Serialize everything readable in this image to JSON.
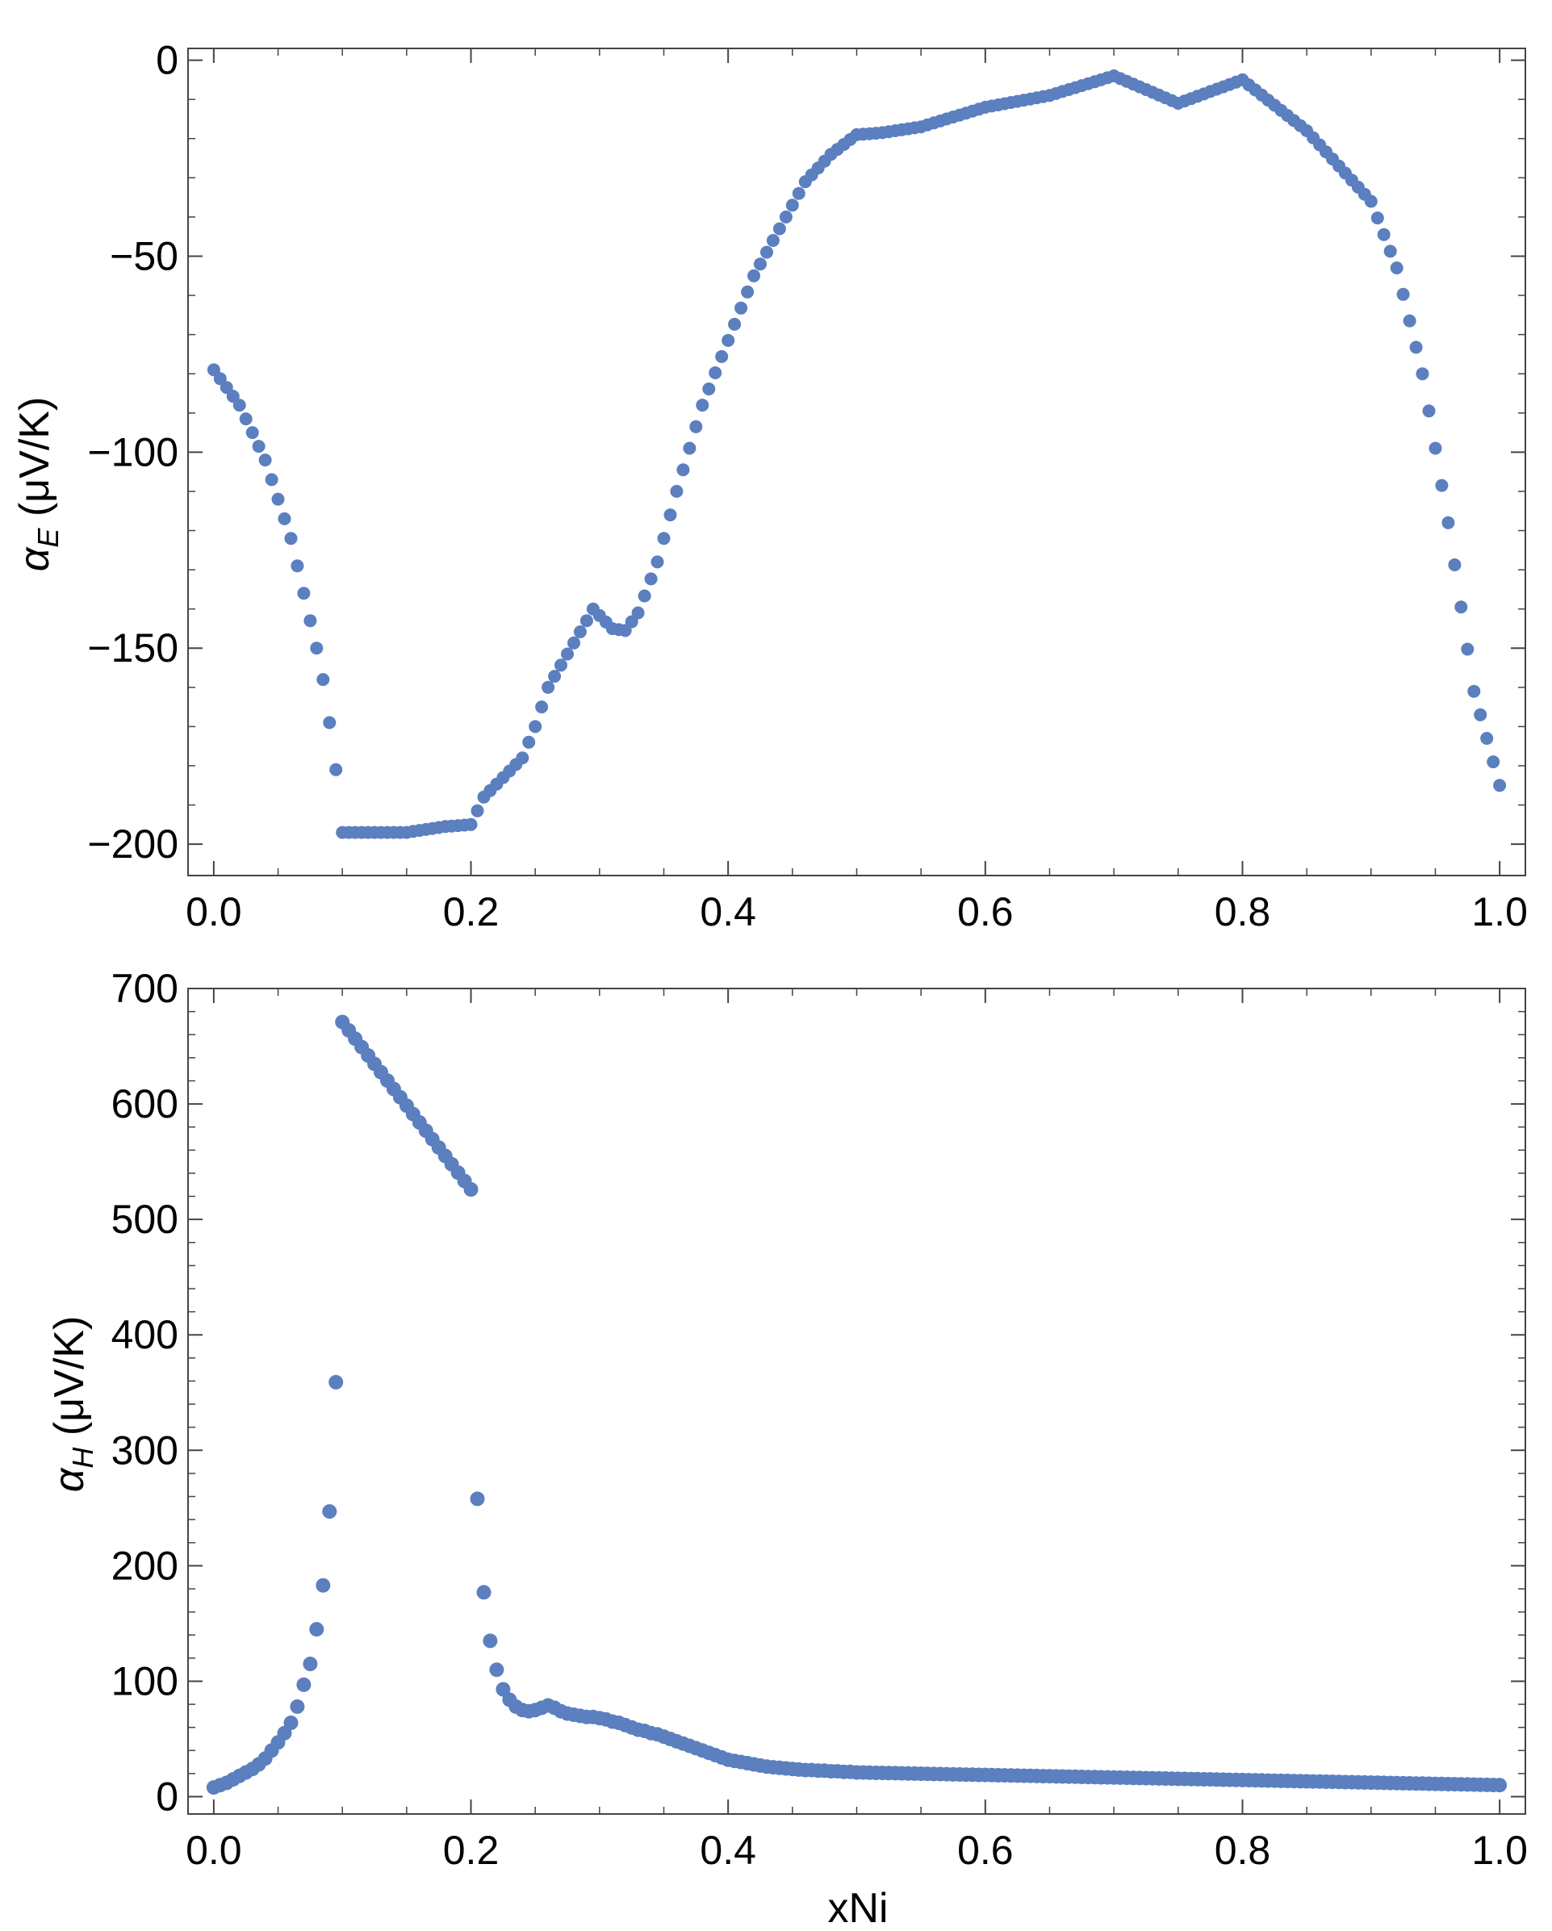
{
  "figure": {
    "marker_color": "#5b7fbf",
    "axis_color": "#444444"
  },
  "chart_data": [
    {
      "type": "scatter",
      "title": "",
      "ylabel": {
        "symbol": "α",
        "subscript": "E",
        "unit": " (μV/K)"
      },
      "xlabel": "",
      "xlim": [
        -0.02,
        1.02
      ],
      "ylim": [
        -208,
        3
      ],
      "xticks": [
        "0.0",
        "0.2",
        "0.4",
        "0.6",
        "0.8",
        "1.0"
      ],
      "yticks": [
        "0",
        "−50",
        "−100",
        "−150",
        "−200"
      ],
      "ytick_values": [
        0,
        -50,
        -100,
        -150,
        -200
      ],
      "xtick_values": [
        0,
        0.2,
        0.4,
        0.6,
        0.8,
        1.0
      ],
      "grid": false,
      "anchors": [
        [
          0.0,
          -79
        ],
        [
          0.02,
          -88
        ],
        [
          0.04,
          -102
        ],
        [
          0.06,
          -122
        ],
        [
          0.07,
          -136
        ],
        [
          0.08,
          -150
        ],
        [
          0.085,
          -158
        ],
        [
          0.09,
          -169
        ],
        [
          0.095,
          -181
        ],
        [
          0.1,
          -197
        ],
        [
          0.12,
          -197
        ],
        [
          0.15,
          -197
        ],
        [
          0.18,
          -195.5
        ],
        [
          0.2,
          -195
        ],
        [
          0.21,
          -188
        ],
        [
          0.24,
          -178
        ],
        [
          0.25,
          -170
        ],
        [
          0.26,
          -160
        ],
        [
          0.29,
          -143
        ],
        [
          0.295,
          -140
        ],
        [
          0.31,
          -145
        ],
        [
          0.32,
          -145.5
        ],
        [
          0.33,
          -141
        ],
        [
          0.345,
          -128
        ],
        [
          0.36,
          -110
        ],
        [
          0.38,
          -88
        ],
        [
          0.42,
          -55
        ],
        [
          0.46,
          -31
        ],
        [
          0.48,
          -24
        ],
        [
          0.5,
          -19
        ],
        [
          0.52,
          -18.5
        ],
        [
          0.55,
          -17
        ],
        [
          0.6,
          -12
        ],
        [
          0.65,
          -9
        ],
        [
          0.7,
          -4
        ],
        [
          0.75,
          -11
        ],
        [
          0.8,
          -5
        ],
        [
          0.85,
          -18
        ],
        [
          0.9,
          -36
        ],
        [
          0.92,
          -53
        ],
        [
          0.94,
          -80
        ],
        [
          0.96,
          -118
        ],
        [
          0.98,
          -161
        ],
        [
          1.0,
          -185
        ]
      ],
      "start": 0.0,
      "end": 1.0,
      "step": 0.005
    },
    {
      "type": "scatter",
      "title": "",
      "ylabel": {
        "symbol": "α",
        "subscript": "H",
        "unit": " (μV/K)"
      },
      "xlabel": "xNi",
      "xlim": [
        -0.02,
        1.02
      ],
      "ylim": [
        -15,
        700
      ],
      "xticks": [
        "0.0",
        "0.2",
        "0.4",
        "0.6",
        "0.8",
        "1.0"
      ],
      "yticks": [
        "0",
        "100",
        "200",
        "300",
        "400",
        "500",
        "600",
        "700"
      ],
      "ytick_values": [
        0,
        100,
        200,
        300,
        400,
        500,
        600,
        700
      ],
      "xtick_values": [
        0,
        0.2,
        0.4,
        0.6,
        0.8,
        1.0
      ],
      "grid": false,
      "points": [
        [
          0.0,
          8
        ],
        [
          0.005,
          10
        ],
        [
          0.01,
          12
        ],
        [
          0.015,
          15
        ],
        [
          0.02,
          18
        ],
        [
          0.025,
          21
        ],
        [
          0.03,
          24
        ],
        [
          0.035,
          28
        ],
        [
          0.04,
          33
        ],
        [
          0.045,
          40
        ],
        [
          0.05,
          47
        ],
        [
          0.055,
          55
        ],
        [
          0.06,
          64
        ],
        [
          0.065,
          78
        ],
        [
          0.07,
          97
        ],
        [
          0.075,
          115
        ],
        [
          0.08,
          145
        ],
        [
          0.085,
          183
        ],
        [
          0.09,
          247
        ],
        [
          0.095,
          359
        ],
        [
          0.2,
          526
        ],
        [
          0.205,
          258
        ],
        [
          0.21,
          177
        ],
        [
          0.215,
          135
        ],
        [
          0.22,
          110
        ],
        [
          0.225,
          93
        ],
        [
          0.23,
          84
        ],
        [
          0.235,
          78
        ],
        [
          0.24,
          75
        ],
        [
          0.245,
          74
        ],
        [
          0.25,
          75
        ],
        [
          0.255,
          77
        ],
        [
          0.26,
          79
        ],
        [
          0.265,
          77
        ],
        [
          0.27,
          74
        ],
        [
          0.275,
          72
        ],
        [
          0.28,
          71
        ],
        [
          0.285,
          70
        ],
        [
          0.29,
          69
        ],
        [
          0.295,
          69
        ],
        [
          0.3,
          68
        ],
        [
          0.305,
          67
        ],
        [
          0.31,
          65
        ],
        [
          0.315,
          64
        ],
        [
          0.32,
          62
        ],
        [
          0.325,
          60
        ],
        [
          0.33,
          58
        ],
        [
          0.335,
          57
        ],
        [
          0.34,
          55
        ],
        [
          0.345,
          54
        ],
        [
          0.35,
          52
        ],
        [
          0.355,
          50
        ],
        [
          0.36,
          48
        ],
        [
          0.365,
          46
        ],
        [
          0.37,
          44
        ],
        [
          0.375,
          42
        ],
        [
          0.38,
          40
        ],
        [
          0.385,
          38
        ],
        [
          0.39,
          36
        ],
        [
          0.395,
          34
        ],
        [
          0.4,
          32
        ],
        [
          0.405,
          31
        ],
        [
          0.41,
          30
        ],
        [
          0.415,
          29
        ],
        [
          0.42,
          28
        ],
        [
          0.425,
          27
        ],
        [
          0.43,
          26
        ],
        [
          0.435,
          25.5
        ],
        [
          0.44,
          25
        ],
        [
          0.445,
          24.5
        ],
        [
          0.45,
          24
        ],
        [
          0.455,
          23.5
        ],
        [
          0.46,
          23
        ],
        [
          0.465,
          23
        ],
        [
          0.47,
          22.5
        ],
        [
          0.475,
          22.5
        ],
        [
          0.48,
          22
        ],
        [
          0.485,
          22
        ],
        [
          0.49,
          21.5
        ],
        [
          0.495,
          21.5
        ]
      ],
      "segment_a": {
        "x0": 0.1,
        "y0": 671,
        "x1": 0.2,
        "y1": 526,
        "step": 0.005
      },
      "tail": {
        "x0": 0.5,
        "y0": 21,
        "x1": 1.0,
        "y1": 10,
        "step": 0.005
      }
    }
  ]
}
